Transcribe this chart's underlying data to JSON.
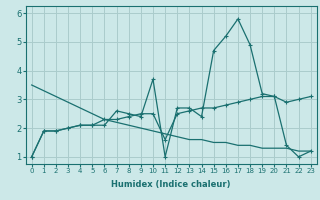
{
  "xlabel": "Humidex (Indice chaleur)",
  "ylabel": "",
  "bg_color": "#cce8e8",
  "grid_color": "#aacccc",
  "line_color": "#1a7070",
  "x_values": [
    0,
    1,
    2,
    3,
    4,
    5,
    6,
    7,
    8,
    9,
    10,
    11,
    12,
    13,
    14,
    15,
    16,
    17,
    18,
    19,
    20,
    21,
    22,
    23
  ],
  "series1": [
    1.0,
    1.9,
    1.9,
    2.0,
    2.1,
    2.1,
    2.1,
    2.6,
    2.5,
    2.4,
    3.7,
    1.0,
    2.7,
    2.7,
    2.4,
    4.7,
    5.2,
    5.8,
    4.9,
    3.2,
    3.1,
    1.4,
    1.0,
    1.2
  ],
  "series2": [
    1.0,
    1.9,
    1.9,
    2.0,
    2.1,
    2.1,
    2.3,
    2.3,
    2.4,
    2.5,
    2.5,
    1.6,
    2.5,
    2.6,
    2.7,
    2.7,
    2.8,
    2.9,
    3.0,
    3.1,
    3.1,
    2.9,
    3.0,
    3.1
  ],
  "series3": [
    3.5,
    3.3,
    3.1,
    2.9,
    2.7,
    2.5,
    2.3,
    2.2,
    2.1,
    2.0,
    1.9,
    1.8,
    1.7,
    1.6,
    1.6,
    1.5,
    1.5,
    1.4,
    1.4,
    1.3,
    1.3,
    1.3,
    1.2,
    1.2
  ],
  "ylim": [
    0.75,
    6.25
  ],
  "yticks": [
    1,
    2,
    3,
    4,
    5,
    6
  ],
  "xlim": [
    -0.5,
    23.5
  ]
}
